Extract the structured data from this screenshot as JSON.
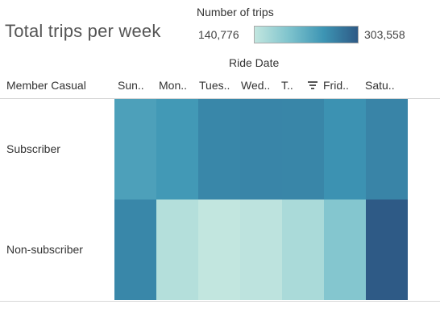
{
  "view": {
    "title": "Total trips per week",
    "legend": {
      "title": "Number of trips",
      "min_label": "140,776",
      "max_label": "303,558",
      "min": 140776,
      "max": 303558,
      "color_low": "#c2e6df",
      "color_high": "#2e5a86"
    },
    "column_field": "Ride Date",
    "row_field": "Member Casual",
    "sort_icon": "sort-descending-icon"
  },
  "chart_data": {
    "type": "heatmap",
    "title": "Total trips per week",
    "xlabel": "Ride Date",
    "ylabel": "Member Casual",
    "categories": [
      "Sun..",
      "Mon..",
      "Tues..",
      "Wed..",
      "T..",
      "Frid..",
      "Satu.."
    ],
    "rows": [
      "Subscriber",
      "Non-subscriber"
    ],
    "series": [
      {
        "name": "Subscriber",
        "values": [
          236000,
          245000,
          262000,
          264000,
          263000,
          252000,
          265000
        ]
      },
      {
        "name": "Non-subscriber",
        "values": [
          262000,
          152000,
          140776,
          145000,
          160000,
          190000,
          303558
        ]
      }
    ],
    "color_range": [
      140776,
      303558
    ]
  }
}
